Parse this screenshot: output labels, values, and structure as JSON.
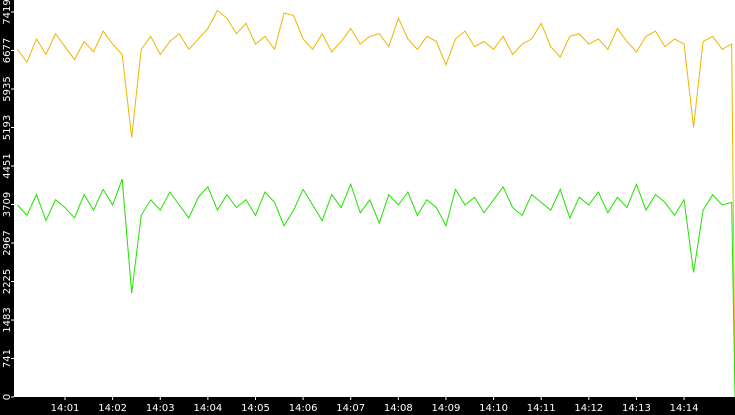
{
  "chart_data": {
    "type": "line",
    "x": [
      0,
      0.2,
      0.4,
      0.6,
      0.8,
      1.0,
      1.2,
      1.4,
      1.6,
      1.8,
      2.0,
      2.2,
      2.4,
      2.6,
      2.8,
      3.0,
      3.2,
      3.4,
      3.6,
      3.8,
      4.0,
      4.2,
      4.4,
      4.6,
      4.8,
      5.0,
      5.2,
      5.4,
      5.6,
      5.8,
      6.0,
      6.2,
      6.4,
      6.6,
      6.8,
      7.0,
      7.2,
      7.4,
      7.6,
      7.8,
      8.0,
      8.2,
      8.4,
      8.6,
      8.8,
      9.0,
      9.2,
      9.4,
      9.6,
      9.8,
      10.0,
      10.2,
      10.4,
      10.6,
      10.8,
      11.0,
      11.2,
      11.4,
      11.6,
      11.8,
      12.0,
      12.2,
      12.4,
      12.6,
      12.8,
      13.0,
      13.2,
      13.4,
      13.6,
      13.8,
      14.0,
      14.2,
      14.4,
      14.6,
      14.8,
      15.0,
      15.07
    ],
    "series": [
      {
        "color": "#f0b400",
        "values": [
          6700,
          6450,
          6900,
          6600,
          7000,
          6750,
          6500,
          6850,
          6650,
          7050,
          6800,
          6600,
          5000,
          6700,
          6950,
          6600,
          6850,
          7000,
          6700,
          6900,
          7100,
          7450,
          7300,
          7000,
          7200,
          6800,
          6950,
          6700,
          7400,
          7350,
          6900,
          6700,
          7000,
          6650,
          6850,
          7100,
          6800,
          6950,
          7000,
          6750,
          7300,
          6900,
          6700,
          6950,
          6850,
          6400,
          6900,
          7050,
          6750,
          6850,
          6700,
          6950,
          6600,
          6800,
          6900,
          7200,
          6750,
          6550,
          6950,
          7000,
          6800,
          6900,
          6700,
          7100,
          6850,
          6650,
          6950,
          7050,
          6750,
          6900,
          6800,
          5200,
          6850,
          6950,
          6700,
          6800,
          300
        ]
      },
      {
        "color": "#22e000",
        "values": [
          3700,
          3500,
          3900,
          3400,
          3800,
          3650,
          3450,
          3900,
          3600,
          4000,
          3700,
          4200,
          2000,
          3500,
          3800,
          3600,
          3950,
          3700,
          3450,
          3850,
          4050,
          3600,
          3900,
          3650,
          3800,
          3500,
          3950,
          3750,
          3300,
          3600,
          4000,
          3700,
          3400,
          3900,
          3650,
          4100,
          3550,
          3800,
          3350,
          3900,
          3700,
          3950,
          3500,
          3800,
          3650,
          3300,
          4000,
          3700,
          3850,
          3550,
          3800,
          4050,
          3650,
          3500,
          3900,
          3750,
          3600,
          4000,
          3450,
          3850,
          3700,
          3950,
          3550,
          3850,
          3650,
          4100,
          3600,
          3900,
          3750,
          3500,
          3800,
          2400,
          3600,
          3900,
          3700,
          3750,
          0
        ]
      }
    ],
    "xlim": [
      0,
      15.07
    ],
    "xticks": [
      {
        "value": 1,
        "label": "14:01"
      },
      {
        "value": 2,
        "label": "14:02"
      },
      {
        "value": 3,
        "label": "14:03"
      },
      {
        "value": 4,
        "label": "14:04"
      },
      {
        "value": 5,
        "label": "14:05"
      },
      {
        "value": 6,
        "label": "14:06"
      },
      {
        "value": 7,
        "label": "14:07"
      },
      {
        "value": 8,
        "label": "14:08"
      },
      {
        "value": 9,
        "label": "14:09"
      },
      {
        "value": 10,
        "label": "14:10"
      },
      {
        "value": 11,
        "label": "14:11"
      },
      {
        "value": 12,
        "label": "14:12"
      },
      {
        "value": 13,
        "label": "14:13"
      },
      {
        "value": 14,
        "label": "14:14"
      }
    ],
    "ylim": [
      0,
      7650
    ],
    "yticks": [
      0,
      741,
      1483,
      2225,
      2967,
      3709,
      4451,
      5193,
      5935,
      6677,
      7419
    ]
  }
}
